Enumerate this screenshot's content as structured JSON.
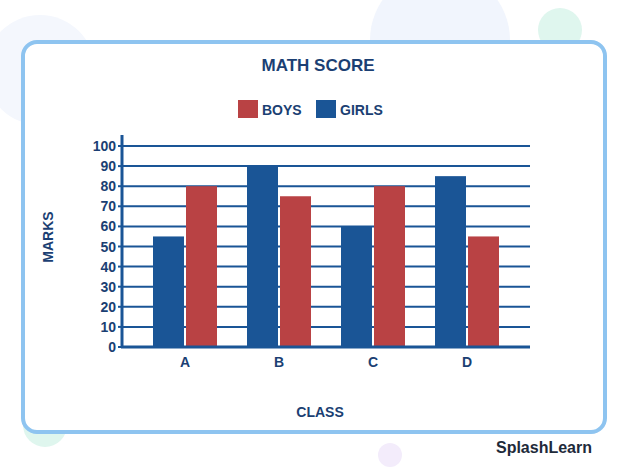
{
  "chart_data": {
    "type": "bar",
    "title": "MATH SCORE",
    "x_label": "CLASS",
    "y_label": "MARKS",
    "categories": [
      "A",
      "B",
      "C",
      "D"
    ],
    "series": [
      {
        "name": "BOYS",
        "color": "#b94244",
        "values": [
          80,
          75,
          80,
          55
        ]
      },
      {
        "name": "GIRLS",
        "color": "#1a5596",
        "values": [
          55,
          90,
          60,
          85
        ]
      }
    ],
    "ylim": [
      0,
      100
    ],
    "yticks": [
      0,
      10,
      20,
      30,
      40,
      50,
      60,
      70,
      80,
      90,
      100
    ],
    "grid": true,
    "legend": "top",
    "source": "SplashLearn"
  }
}
